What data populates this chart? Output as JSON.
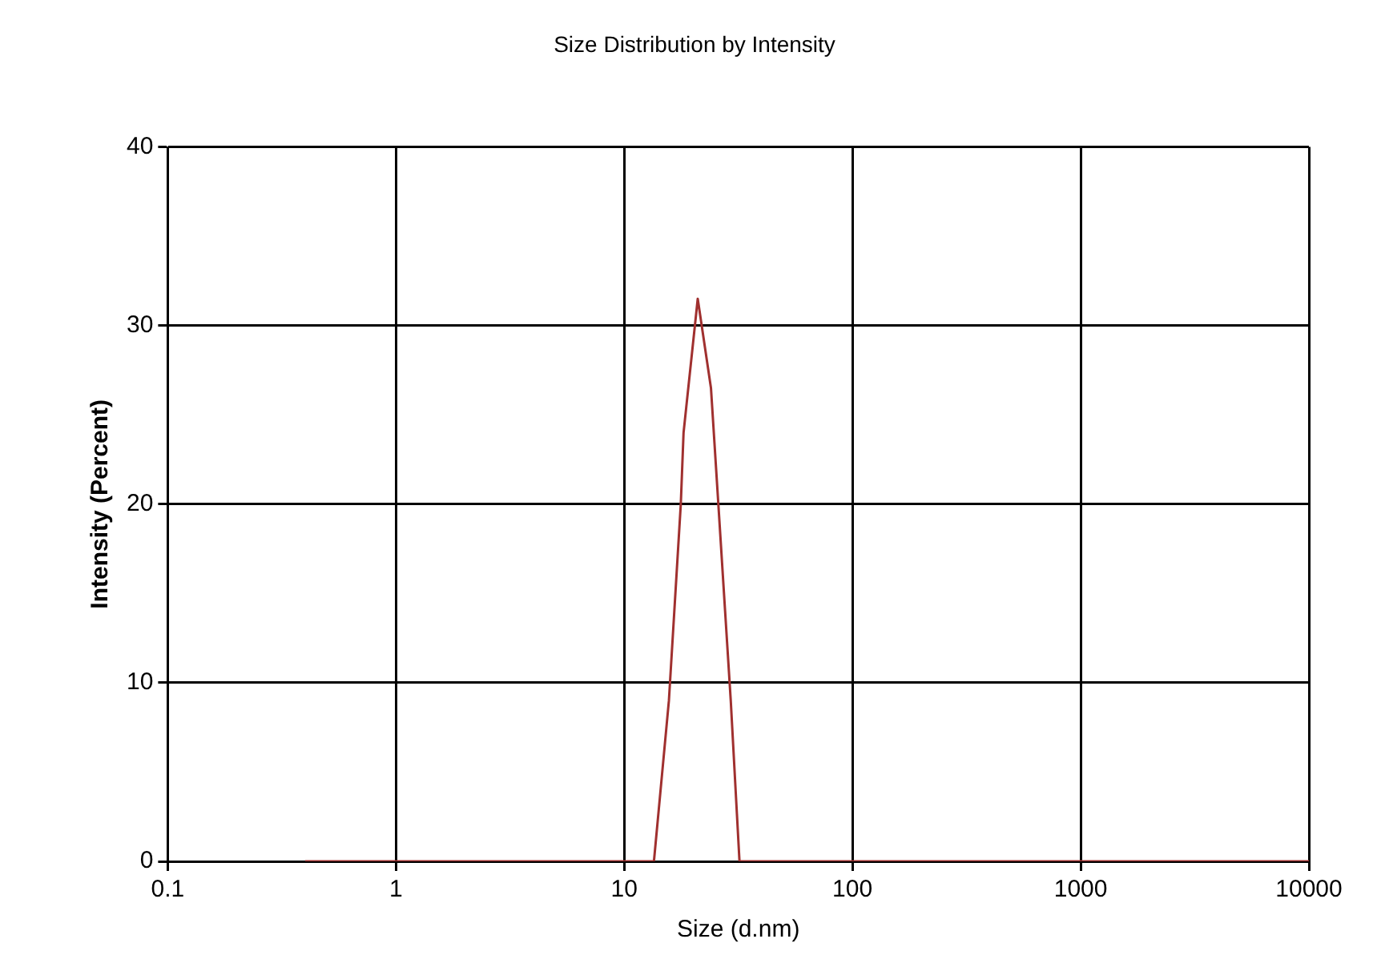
{
  "chart_data": {
    "type": "line",
    "title": "Size Distribution by Intensity",
    "xlabel": "Size (d.nm)",
    "ylabel": "Intensity (Percent)",
    "log": "x",
    "xlim": [
      0.1,
      10000
    ],
    "xticks": [
      0.1,
      1,
      10,
      100,
      1000,
      10000
    ],
    "ylim": [
      0,
      40
    ],
    "yticks": [
      0,
      10,
      20,
      30,
      40
    ],
    "grid": true,
    "legend": false,
    "marker": "none",
    "line_style": "solid",
    "series": [
      {
        "color": "#a0302f",
        "x": [
          0.4,
          1,
          10,
          13.5,
          15.7,
          17.7,
          18.2,
          21,
          24,
          26,
          29.3,
          32,
          100,
          1000,
          10000
        ],
        "values": [
          0,
          0,
          0,
          0,
          9,
          20,
          24,
          31.5,
          26.5,
          19.5,
          9,
          0,
          0,
          0,
          0
        ]
      }
    ]
  }
}
